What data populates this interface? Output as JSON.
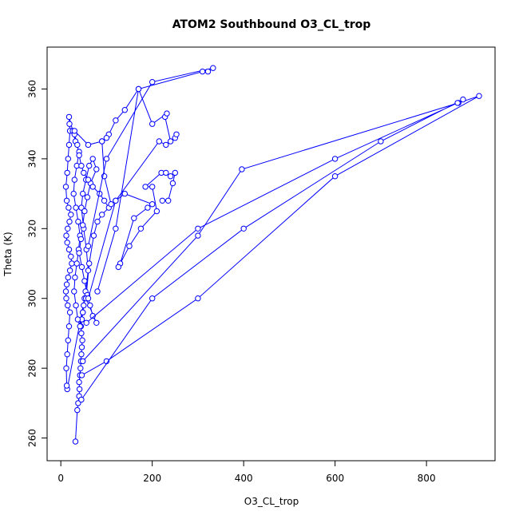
{
  "chart_data": {
    "type": "scatter",
    "title": "ATOM2 Southbound O3_CL_trop",
    "xlabel": "O3_CL_trop",
    "ylabel": "Theta (K)",
    "xlim": [
      -30,
      950
    ],
    "ylim": [
      253.5,
      372
    ],
    "xticks": [
      0,
      200,
      400,
      600,
      800
    ],
    "yticks": [
      260,
      280,
      300,
      320,
      340,
      360
    ],
    "grid": false,
    "legend": "none",
    "color": "#0000ff",
    "marker": "open-circle",
    "connected": true,
    "series": [
      {
        "values": [
          [
            32,
            259
          ],
          [
            36,
            268
          ],
          [
            38,
            270
          ],
          [
            40,
            272
          ],
          [
            41,
            274
          ],
          [
            40,
            276
          ],
          [
            42,
            278
          ],
          [
            43,
            280
          ],
          [
            44,
            282
          ],
          [
            45,
            284
          ],
          [
            46,
            286
          ],
          [
            47,
            288
          ],
          [
            45,
            290
          ],
          [
            44,
            292
          ],
          [
            46,
            294
          ],
          [
            48,
            296
          ],
          [
            50,
            298
          ],
          [
            52,
            300
          ],
          [
            14,
            274
          ],
          [
            13,
            275
          ],
          [
            12,
            280
          ],
          [
            14,
            284
          ],
          [
            16,
            288
          ],
          [
            18,
            292
          ],
          [
            20,
            296
          ],
          [
            15,
            298
          ],
          [
            12,
            300
          ],
          [
            11,
            302
          ],
          [
            13,
            304
          ],
          [
            16,
            306
          ],
          [
            20,
            308
          ],
          [
            24,
            310
          ],
          [
            22,
            312
          ],
          [
            18,
            314
          ],
          [
            14,
            316
          ],
          [
            12,
            318
          ],
          [
            15,
            320
          ],
          [
            19,
            322
          ],
          [
            22,
            324
          ],
          [
            17,
            326
          ],
          [
            13,
            328
          ],
          [
            11,
            332
          ],
          [
            14,
            336
          ],
          [
            16,
            340
          ],
          [
            18,
            344
          ],
          [
            20,
            348
          ],
          [
            19,
            350
          ],
          [
            18,
            352
          ],
          [
            26,
            348
          ],
          [
            32,
            345
          ],
          [
            40,
            342
          ],
          [
            35,
            338
          ],
          [
            30,
            334
          ],
          [
            28,
            330
          ],
          [
            33,
            326
          ],
          [
            38,
            322
          ],
          [
            42,
            318
          ],
          [
            39,
            314
          ],
          [
            35,
            310
          ],
          [
            31,
            306
          ],
          [
            29,
            302
          ],
          [
            33,
            298
          ],
          [
            37,
            294
          ],
          [
            42,
            292
          ],
          [
            48,
            296
          ],
          [
            54,
            302
          ],
          [
            60,
            308
          ],
          [
            56,
            314
          ],
          [
            50,
            320
          ],
          [
            45,
            326
          ],
          [
            48,
            330
          ],
          [
            55,
            334
          ],
          [
            62,
            338
          ],
          [
            70,
            340
          ],
          [
            78,
            337
          ],
          [
            65,
            333
          ],
          [
            58,
            329
          ],
          [
            52,
            325
          ],
          [
            48,
            321
          ],
          [
            44,
            317
          ],
          [
            40,
            313
          ],
          [
            46,
            309
          ],
          [
            52,
            305
          ],
          [
            58,
            301
          ],
          [
            64,
            298
          ],
          [
            70,
            295
          ],
          [
            78,
            293
          ],
          [
            55,
            300
          ],
          [
            62,
            310
          ],
          [
            72,
            318
          ],
          [
            80,
            322
          ],
          [
            90,
            324
          ],
          [
            105,
            326
          ],
          [
            95,
            328
          ],
          [
            85,
            330
          ],
          [
            70,
            332
          ],
          [
            60,
            334
          ],
          [
            50,
            336
          ],
          [
            45,
            338
          ],
          [
            40,
            341
          ],
          [
            36,
            344
          ],
          [
            30,
            347
          ]
        ]
      },
      {
        "values": [
          [
            30,
            348
          ],
          [
            60,
            344
          ],
          [
            90,
            345
          ],
          [
            95,
            335
          ],
          [
            110,
            327
          ],
          [
            120,
            328
          ],
          [
            140,
            330
          ],
          [
            200,
            327
          ],
          [
            190,
            326
          ],
          [
            160,
            323
          ],
          [
            130,
            310
          ],
          [
            126,
            309
          ],
          [
            150,
            315
          ],
          [
            175,
            320
          ],
          [
            210,
            325
          ],
          [
            200,
            332
          ],
          [
            185,
            332
          ],
          [
            220,
            336
          ],
          [
            230,
            336
          ],
          [
            240,
            335
          ],
          [
            250,
            336
          ],
          [
            245,
            333
          ],
          [
            235,
            328
          ],
          [
            222,
            328
          ]
        ]
      },
      {
        "values": [
          [
            60,
            300
          ],
          [
            120,
            328
          ],
          [
            215,
            345
          ],
          [
            230,
            344
          ],
          [
            250,
            346
          ],
          [
            253,
            347
          ],
          [
            240,
            345
          ],
          [
            228,
            352
          ],
          [
            232,
            353
          ],
          [
            200,
            350
          ],
          [
            170,
            360
          ],
          [
            140,
            354
          ],
          [
            120,
            351
          ],
          [
            105,
            347
          ],
          [
            100,
            346
          ],
          [
            90,
            345
          ]
        ]
      },
      {
        "values": [
          [
            80,
            302
          ],
          [
            120,
            320
          ],
          [
            170,
            360
          ],
          [
            310,
            365
          ],
          [
            322,
            365
          ],
          [
            333,
            366
          ],
          [
            200,
            362
          ],
          [
            100,
            340
          ],
          [
            60,
            315
          ]
        ]
      },
      {
        "values": [
          [
            48,
            282
          ],
          [
            300,
            318
          ],
          [
            396,
            337
          ],
          [
            870,
            356
          ],
          [
            915,
            358
          ],
          [
            600,
            335
          ],
          [
            300,
            300
          ],
          [
            100,
            282
          ],
          [
            46,
            278
          ]
        ]
      },
      {
        "values": [
          [
            56,
            293
          ],
          [
            300,
            320
          ],
          [
            600,
            340
          ],
          [
            868,
            356
          ],
          [
            880,
            357
          ],
          [
            700,
            345
          ],
          [
            400,
            320
          ],
          [
            200,
            300
          ],
          [
            45,
            271
          ]
        ]
      }
    ]
  }
}
